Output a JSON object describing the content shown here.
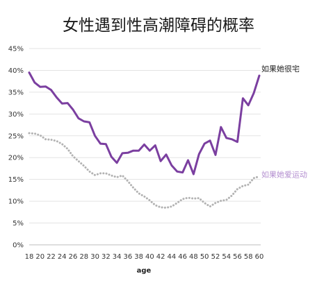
{
  "chart_data": {
    "type": "line",
    "title": "女性遇到性高潮障碍的概率",
    "xlabel": "age",
    "ylabel": "",
    "x": [
      18,
      19,
      20,
      21,
      22,
      23,
      24,
      25,
      26,
      27,
      28,
      29,
      30,
      31,
      32,
      33,
      34,
      35,
      36,
      37,
      38,
      39,
      40,
      41,
      42,
      43,
      44,
      45,
      46,
      47,
      48,
      49,
      50,
      51,
      52,
      53,
      54,
      55,
      56,
      57,
      58,
      59,
      60
    ],
    "x_ticks": [
      "18",
      "20",
      "22",
      "24",
      "26",
      "28",
      "30",
      "32",
      "34",
      "36",
      "38",
      "40",
      "42",
      "44",
      "46",
      "48",
      "50",
      "52",
      "54",
      "56",
      "58",
      "60"
    ],
    "ylim": [
      0,
      45
    ],
    "y_ticks": [
      "0%",
      "5%",
      "10%",
      "15%",
      "20%",
      "25%",
      "30%",
      "35%",
      "40%",
      "45%"
    ],
    "grid": true,
    "series": [
      {
        "name": "如果她很宅",
        "style": "solid",
        "color": "#7b3fa0",
        "values": [
          39.5,
          37.2,
          36.2,
          36.3,
          35.5,
          33.8,
          32.4,
          32.5,
          31.0,
          29.0,
          28.3,
          28.1,
          25.0,
          23.2,
          23.1,
          20.2,
          18.8,
          21.0,
          21.1,
          21.6,
          21.6,
          23.0,
          21.6,
          22.8,
          19.2,
          20.7,
          18.2,
          16.8,
          16.6,
          19.4,
          16.2,
          20.8,
          23.2,
          23.9,
          20.6,
          27.0,
          24.5,
          24.2,
          23.6,
          33.6,
          32.0,
          34.8,
          38.8
        ]
      },
      {
        "name": "如果她爱运动",
        "style": "dotted",
        "color": "#b3b3b3",
        "values": [
          25.6,
          25.5,
          25.1,
          24.2,
          24.1,
          23.8,
          23.1,
          22.0,
          20.3,
          19.2,
          18.1,
          16.8,
          16.0,
          16.4,
          16.4,
          15.9,
          15.5,
          15.9,
          14.6,
          13.1,
          11.8,
          11.1,
          10.2,
          9.1,
          8.6,
          8.5,
          8.8,
          9.6,
          10.5,
          10.8,
          10.6,
          10.7,
          9.6,
          8.8,
          9.6,
          10.1,
          10.3,
          11.3,
          12.8,
          13.5,
          13.8,
          15.3,
          15.7
        ]
      }
    ]
  }
}
